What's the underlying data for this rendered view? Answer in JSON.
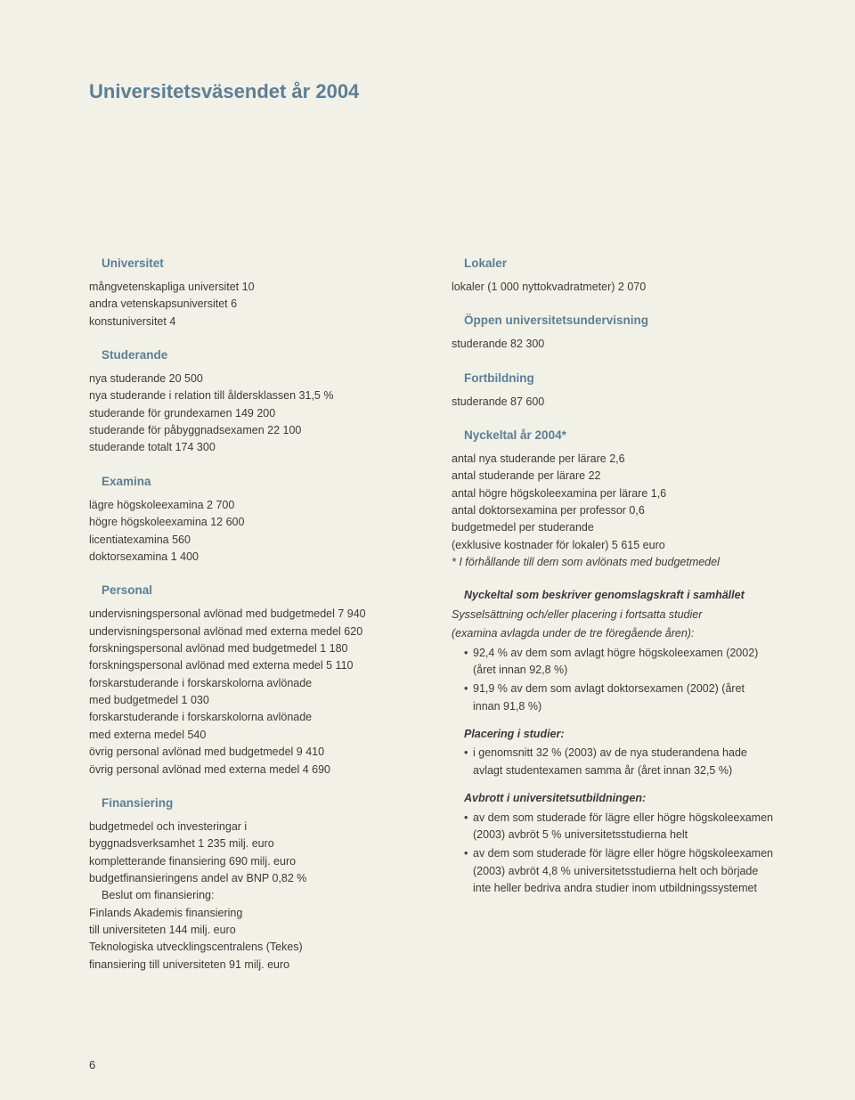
{
  "page": {
    "title": "Universitetsväsendet år 2004",
    "number": "6"
  },
  "left": {
    "universitet": {
      "head": "Universitet",
      "l1": "mångvetenskapliga universitet 10",
      "l2": "andra vetenskapsuniversitet 6",
      "l3": "konstuniversitet 4"
    },
    "studerande": {
      "head": "Studerande",
      "l1": "nya studerande 20 500",
      "l2": "nya studerande i relation till åldersklassen 31,5 %",
      "l3": "studerande för grundexamen 149 200",
      "l4": "studerande för påbyggnadsexamen 22 100",
      "l5": "studerande totalt 174 300"
    },
    "examina": {
      "head": "Examina",
      "l1": "lägre högskoleexamina 2 700",
      "l2": "högre högskoleexamina 12 600",
      "l3": "licentiatexamina 560",
      "l4": "doktorsexamina 1 400"
    },
    "personal": {
      "head": "Personal",
      "l1": "undervisningspersonal avlönad med budgetmedel 7 940",
      "l2": "undervisningspersonal avlönad med externa medel 620",
      "l3": "forskningspersonal avlönad med budgetmedel 1 180",
      "l4": "forskningspersonal avlönad med externa medel 5 110",
      "l5a": "forskarstuderande i forskarskolorna avlönade",
      "l5b": "med budgetmedel 1 030",
      "l6a": "forskarstuderande i forskarskolorna avlönade",
      "l6b": "med externa medel 540",
      "l7": "övrig personal avlönad med budgetmedel 9 410",
      "l8": "övrig personal avlönad med externa medel 4 690"
    },
    "finansiering": {
      "head": "Finansiering",
      "l1a": "budgetmedel och investeringar i",
      "l1b": "byggnadsverksamhet  1 235 milj. euro",
      "l2": "kompletterande finansiering 690 milj. euro",
      "l3": "budgetfinansieringens andel av BNP 0,82 %",
      "sub": "Beslut om finansiering:",
      "l4a": "Finlands Akademis finansiering",
      "l4b": "till universiteten 144 milj. euro",
      "l5a": "Teknologiska utvecklingscentralens (Tekes)",
      "l5b": "finansiering till universiteten 91 milj. euro"
    }
  },
  "right": {
    "lokaler": {
      "head": "Lokaler",
      "l1": "lokaler (1 000 nyttokvadratmeter) 2 070"
    },
    "oppen": {
      "head": "Öppen universitetsundervisning",
      "l1": "studerande 82 300"
    },
    "fortbildning": {
      "head": "Fortbildning",
      "l1": "studerande 87 600"
    },
    "nyckeltal": {
      "head": "Nyckeltal år 2004*",
      "l1": "antal nya studerande per lärare 2,6",
      "l2": "antal studerande per lärare 22",
      "l3": "antal högre högskoleexamina per lärare 1,6",
      "l4": "antal doktorsexamina per professor 0,6",
      "l5a": "budgetmedel per studerande",
      "l5b": "(exklusive kostnader för lokaler) 5 615 euro",
      "foot": "* I förhållande till dem som avlönats med budgetmedel"
    },
    "genomslag": {
      "h1": "Nyckeltal som beskriver genomslagskraft i samhället",
      "h2": "Sysselsättning och/eller placering i fortsatta studier",
      "h3": "(examina avlagda under de tre föregående åren):",
      "b1": "92,4 % av dem som avlagt högre högskoleexamen (2002) (året innan 92,8 %)",
      "b2": "91,9 % av dem som avlagt doktorsexamen (2002) (året innan 91,8 %)",
      "placH": "Placering i studier:",
      "placB1": "i genomsnitt 32 % (2003) av de nya studerandena hade avlagt studentexamen samma år (året innan 32,5 %)",
      "avbH": "Avbrott i universitetsutbildningen:",
      "avbB1": "av dem som studerade för lägre eller högre högskoleexamen (2003) avbröt 5 % universitetsstudierna helt",
      "avbB2": "av dem som studerade för lägre eller högre högskoleexamen (2003) avbröt 4,8 % universitetsstudierna helt och började inte heller bedriva andra studier inom utbildningssystemet"
    }
  }
}
